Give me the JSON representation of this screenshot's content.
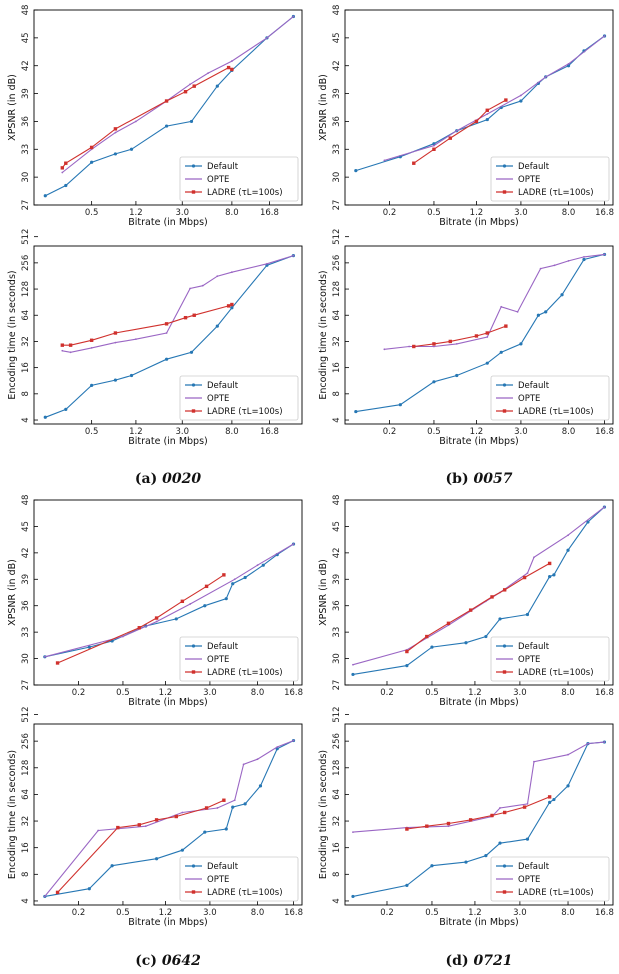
{
  "colors": {
    "Default": "#2677b4",
    "OPTE": "#9a66c4",
    "LADRE": "#d0312d"
  },
  "captions": [
    {
      "label": "(a)",
      "name": "0020"
    },
    {
      "label": "(b)",
      "name": "0057"
    },
    {
      "label": "(c)",
      "name": "0642"
    },
    {
      "label": "(d)",
      "name": "0721"
    }
  ],
  "chart_data": [
    {
      "type": "line",
      "panel": "a-top",
      "xlabel": "Bitrate (in Mbps)",
      "ylabel": "XPSNR (in dB)",
      "xscale": "log2",
      "xlim": [
        0.16,
        32
      ],
      "xticks": [
        0.5,
        1.2,
        3.0,
        8.0,
        16.8
      ],
      "xtick_labels": [
        "0.5",
        "1.2",
        "3.0",
        "8.0",
        "16.8"
      ],
      "yscale": "linear",
      "ylim": [
        27,
        48
      ],
      "yticks": [
        27,
        30,
        33,
        36,
        39,
        42,
        45,
        48
      ],
      "legend": "lower-right",
      "series": [
        {
          "name": "Default",
          "x": [
            0.2,
            0.3,
            0.5,
            0.8,
            1.1,
            2.2,
            3.6,
            6.0,
            8.0,
            16.0,
            27.0
          ],
          "y": [
            28.0,
            29.1,
            31.6,
            32.5,
            33.0,
            35.5,
            36.0,
            39.8,
            41.5,
            45.0,
            47.3
          ]
        },
        {
          "name": "OPTE",
          "x": [
            0.28,
            0.5,
            0.8,
            1.2,
            2.2,
            3.5,
            5.0,
            8.0,
            16.0,
            27.0
          ],
          "y": [
            30.5,
            33.0,
            34.8,
            36.0,
            38.2,
            40.0,
            41.2,
            42.5,
            45.0,
            47.3
          ]
        },
        {
          "name": "LADRE (τL=100s)",
          "x": [
            0.28,
            0.3,
            0.5,
            0.8,
            2.2,
            3.2,
            3.8,
            7.5,
            8.0
          ],
          "y": [
            31.0,
            31.5,
            33.2,
            35.2,
            38.2,
            39.2,
            39.8,
            41.8,
            41.6
          ]
        }
      ]
    },
    {
      "type": "line",
      "panel": "a-bottom",
      "xlabel": "Bitrate (in Mbps)",
      "ylabel": "Encoding time (in seconds)",
      "xscale": "log2",
      "xlim": [
        0.16,
        32
      ],
      "xticks": [
        0.5,
        1.2,
        3.0,
        8.0,
        16.8
      ],
      "xtick_labels": [
        "0.5",
        "1.2",
        "3.0",
        "8.0",
        "16.8"
      ],
      "yscale": "log2",
      "ylim": [
        3.6,
        400
      ],
      "yticks": [
        4,
        8,
        16,
        32,
        64,
        128,
        256,
        512
      ],
      "legend": "lower-right",
      "series": [
        {
          "name": "Default",
          "x": [
            0.2,
            0.3,
            0.5,
            0.8,
            1.1,
            2.2,
            3.6,
            6.0,
            8.0,
            16.0,
            27.0
          ],
          "y": [
            4.3,
            5.3,
            10.0,
            11.5,
            13.0,
            20.0,
            24.0,
            48.0,
            78.0,
            240.0,
            310.0
          ]
        },
        {
          "name": "OPTE",
          "x": [
            0.28,
            0.33,
            0.5,
            0.8,
            1.2,
            2.2,
            3.5,
            4.5,
            6.0,
            8.0,
            16.0,
            27.0
          ],
          "y": [
            25.0,
            24.0,
            27.0,
            31.0,
            34.0,
            40.0,
            130.0,
            140.0,
            180.0,
            200.0,
            250.0,
            310.0
          ]
        },
        {
          "name": "LADRE (τL=100s)",
          "x": [
            0.28,
            0.33,
            0.5,
            0.8,
            2.2,
            3.2,
            3.8,
            7.5,
            8.0
          ],
          "y": [
            29.0,
            29.0,
            33.0,
            40.0,
            51.0,
            60.0,
            64.0,
            82.0,
            85.0
          ]
        }
      ]
    },
    {
      "type": "line",
      "panel": "b-top",
      "xlabel": "Bitrate (in Mbps)",
      "ylabel": "XPSNR (in dB)",
      "xscale": "log2",
      "xlim": [
        0.08,
        20
      ],
      "xticks": [
        0.2,
        0.5,
        1.2,
        3.0,
        8.0,
        16.8
      ],
      "xtick_labels": [
        "0.2",
        "0.5",
        "1.2",
        "3.0",
        "8.0",
        "16.8"
      ],
      "yscale": "linear",
      "ylim": [
        27,
        48
      ],
      "yticks": [
        27,
        30,
        33,
        36,
        39,
        42,
        45,
        48
      ],
      "legend": "lower-right",
      "series": [
        {
          "name": "Default",
          "x": [
            0.1,
            0.25,
            0.5,
            0.8,
            1.5,
            2.0,
            3.0,
            4.3,
            5.0,
            8.0,
            11.0,
            16.8
          ],
          "y": [
            30.7,
            32.2,
            33.6,
            35.0,
            36.2,
            37.5,
            38.2,
            40.1,
            40.8,
            42.0,
            43.6,
            45.2
          ]
        },
        {
          "name": "OPTE",
          "x": [
            0.18,
            0.5,
            0.8,
            1.5,
            3.0,
            5.0,
            8.0,
            16.8
          ],
          "y": [
            31.8,
            33.4,
            35.0,
            36.8,
            38.8,
            40.8,
            42.2,
            45.2
          ]
        },
        {
          "name": "LADRE (τL=100s)",
          "x": [
            0.33,
            0.5,
            0.7,
            1.2,
            1.5,
            2.2
          ],
          "y": [
            31.5,
            33.0,
            34.2,
            36.0,
            37.2,
            38.3
          ]
        }
      ]
    },
    {
      "type": "line",
      "panel": "b-bottom",
      "xlabel": "Bitrate (in Mbps)",
      "ylabel": "Encoding time (in seconds)",
      "xscale": "log2",
      "xlim": [
        0.08,
        20
      ],
      "xticks": [
        0.2,
        0.5,
        1.2,
        3.0,
        8.0,
        16.8
      ],
      "xtick_labels": [
        "0.2",
        "0.5",
        "1.2",
        "3.0",
        "8.0",
        "16.8"
      ],
      "yscale": "log2",
      "ylim": [
        3.6,
        400
      ],
      "yticks": [
        4,
        8,
        16,
        32,
        64,
        128,
        256,
        512
      ],
      "legend": "lower-right",
      "series": [
        {
          "name": "Default",
          "x": [
            0.1,
            0.25,
            0.5,
            0.8,
            1.5,
            2.0,
            3.0,
            4.3,
            5.0,
            7.0,
            11.0,
            16.8
          ],
          "y": [
            5.0,
            6.0,
            11.0,
            13.0,
            18.0,
            24.0,
            30.0,
            64.0,
            70.0,
            110.0,
            280.0,
            320.0
          ]
        },
        {
          "name": "OPTE",
          "x": [
            0.18,
            0.3,
            0.5,
            0.8,
            1.5,
            2.0,
            2.8,
            4.5,
            6.0,
            8.0,
            11.0,
            16.8
          ],
          "y": [
            26.0,
            28.0,
            28.0,
            30.0,
            36.0,
            80.0,
            70.0,
            220.0,
            240.0,
            270.0,
            300.0,
            320.0
          ]
        },
        {
          "name": "LADRE (τL=100s)",
          "x": [
            0.33,
            0.5,
            0.7,
            1.2,
            1.5,
            2.2
          ],
          "y": [
            28.0,
            30.0,
            32.0,
            37.0,
            40.0,
            48.0
          ]
        }
      ]
    },
    {
      "type": "line",
      "panel": "c-top",
      "xlabel": "Bitrate (in Mbps)",
      "ylabel": "XPSNR (in dB)",
      "xscale": "log2",
      "xlim": [
        0.08,
        20
      ],
      "xticks": [
        0.2,
        0.5,
        1.2,
        3.0,
        8.0,
        16.8
      ],
      "xtick_labels": [
        "0.2",
        "0.5",
        "1.2",
        "3.0",
        "8.0",
        "16.8"
      ],
      "yscale": "linear",
      "ylim": [
        27,
        48
      ],
      "yticks": [
        27,
        30,
        33,
        36,
        39,
        42,
        45,
        48
      ],
      "legend": "lower-right",
      "series": [
        {
          "name": "Default",
          "x": [
            0.1,
            0.25,
            0.4,
            0.8,
            1.5,
            2.7,
            4.2,
            4.8,
            6.2,
            9.0,
            12.0,
            16.8
          ],
          "y": [
            30.2,
            31.3,
            32.0,
            33.7,
            34.5,
            36.0,
            36.8,
            38.5,
            39.2,
            40.6,
            41.8,
            43.0
          ]
        },
        {
          "name": "OPTE",
          "x": [
            0.1,
            0.5,
            1.0,
            2.0,
            5.0,
            8.0,
            16.8
          ],
          "y": [
            30.2,
            32.5,
            34.2,
            36.2,
            39.0,
            40.6,
            43.0
          ]
        },
        {
          "name": "LADRE (τL=100s)",
          "x": [
            0.13,
            0.7,
            1.0,
            1.7,
            2.8,
            4.0
          ],
          "y": [
            29.5,
            33.5,
            34.6,
            36.5,
            38.2,
            39.5
          ]
        }
      ]
    },
    {
      "type": "line",
      "panel": "c-bottom",
      "xlabel": "Bitrate (in Mbps)",
      "ylabel": "Encoding time (in seconds)",
      "xscale": "log2",
      "xlim": [
        0.08,
        20
      ],
      "xticks": [
        0.2,
        0.5,
        1.2,
        3.0,
        8.0,
        16.8
      ],
      "xtick_labels": [
        "0.2",
        "0.5",
        "1.2",
        "3.0",
        "8.0",
        "16.8"
      ],
      "yscale": "log2",
      "ylim": [
        3.6,
        400
      ],
      "yticks": [
        4,
        8,
        16,
        32,
        64,
        128,
        256,
        512
      ],
      "legend": "lower-right",
      "series": [
        {
          "name": "Default",
          "x": [
            0.1,
            0.25,
            0.4,
            1.0,
            1.7,
            2.7,
            4.2,
            4.8,
            6.2,
            8.5,
            12.0,
            16.8
          ],
          "y": [
            4.5,
            5.5,
            10.0,
            12.0,
            15.0,
            24.0,
            26.0,
            46.0,
            50.0,
            80.0,
            210.0,
            260.0
          ]
        },
        {
          "name": "OPTE",
          "x": [
            0.1,
            0.3,
            0.8,
            1.7,
            3.5,
            5.0,
            6.0,
            8.0,
            12.0,
            16.8
          ],
          "y": [
            4.5,
            25.0,
            28.0,
            40.0,
            45.0,
            55.0,
            140.0,
            160.0,
            220.0,
            260.0
          ]
        },
        {
          "name": "LADRE (τL=100s)",
          "x": [
            0.13,
            0.45,
            0.7,
            1.0,
            1.5,
            2.8,
            4.0
          ],
          "y": [
            5.0,
            27.0,
            29.0,
            33.0,
            36.0,
            45.0,
            55.0
          ]
        }
      ]
    },
    {
      "type": "line",
      "panel": "d-top",
      "xlabel": "Bitrate (in Mbps)",
      "ylabel": "XPSNR (in dB)",
      "xscale": "log2",
      "xlim": [
        0.085,
        20
      ],
      "xticks": [
        0.2,
        0.5,
        1.2,
        3.0,
        8.0,
        16.8
      ],
      "xtick_labels": [
        "0.2",
        "0.5",
        "1.2",
        "3.0",
        "8.0",
        "16.8"
      ],
      "yscale": "linear",
      "ylim": [
        27,
        48
      ],
      "yticks": [
        27,
        30,
        33,
        36,
        39,
        42,
        45,
        48
      ],
      "legend": "lower-right",
      "series": [
        {
          "name": "Default",
          "x": [
            0.1,
            0.3,
            0.5,
            1.0,
            1.5,
            2.0,
            3.5,
            5.5,
            6.0,
            8.0,
            12.0,
            16.8
          ],
          "y": [
            28.2,
            29.2,
            31.3,
            31.8,
            32.5,
            34.5,
            35.0,
            39.3,
            39.5,
            42.3,
            45.5,
            47.2
          ]
        },
        {
          "name": "OPTE",
          "x": [
            0.1,
            0.3,
            0.7,
            1.5,
            2.0,
            3.5,
            4.0,
            8.0,
            16.8
          ],
          "y": [
            29.3,
            31.0,
            33.8,
            36.5,
            37.5,
            39.7,
            41.5,
            44.0,
            47.2
          ]
        },
        {
          "name": "LADRE (τL=100s)",
          "x": [
            0.3,
            0.45,
            0.7,
            1.1,
            1.7,
            2.2,
            3.3,
            5.5
          ],
          "y": [
            30.8,
            32.5,
            34.0,
            35.5,
            37.0,
            37.8,
            39.2,
            40.8
          ]
        }
      ]
    },
    {
      "type": "line",
      "panel": "d-bottom",
      "xlabel": "Bitrate (in Mbps)",
      "ylabel": "Encoding time (in seconds)",
      "xscale": "log2",
      "xlim": [
        0.085,
        20
      ],
      "xticks": [
        0.2,
        0.5,
        1.2,
        3.0,
        8.0,
        16.8
      ],
      "xtick_labels": [
        "0.2",
        "0.5",
        "1.2",
        "3.0",
        "8.0",
        "16.8"
      ],
      "yscale": "log2",
      "ylim": [
        3.6,
        400
      ],
      "yticks": [
        4,
        8,
        16,
        32,
        64,
        128,
        256,
        512
      ],
      "legend": "lower-right",
      "series": [
        {
          "name": "Default",
          "x": [
            0.1,
            0.3,
            0.5,
            1.0,
            1.5,
            2.0,
            3.5,
            5.5,
            6.0,
            8.0,
            12.0,
            16.8
          ],
          "y": [
            4.5,
            6.0,
            10.0,
            11.0,
            13.0,
            18.0,
            20.0,
            52.0,
            56.0,
            80.0,
            240.0,
            250.0
          ]
        },
        {
          "name": "OPTE",
          "x": [
            0.1,
            0.3,
            0.7,
            1.7,
            2.0,
            3.5,
            4.0,
            8.0,
            12.0,
            16.8
          ],
          "y": [
            24.0,
            27.0,
            28.0,
            36.0,
            45.0,
            50.0,
            150.0,
            180.0,
            240.0,
            250.0
          ]
        },
        {
          "name": "LADRE (τL=100s)",
          "x": [
            0.3,
            0.45,
            0.7,
            1.1,
            1.7,
            2.2,
            3.3,
            5.5
          ],
          "y": [
            26.0,
            28.0,
            30.0,
            33.0,
            37.0,
            40.0,
            46.0,
            60.0
          ]
        }
      ]
    }
  ]
}
